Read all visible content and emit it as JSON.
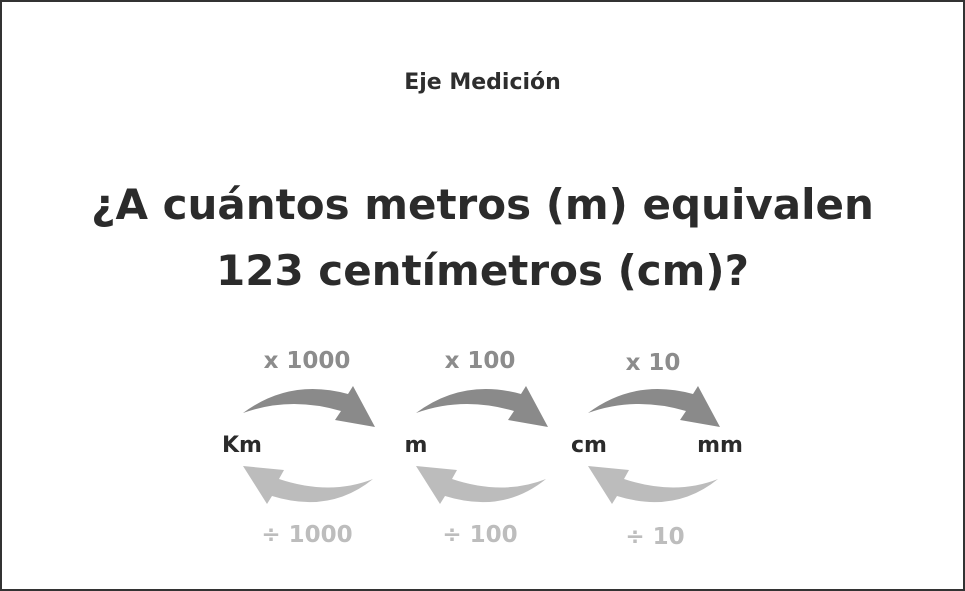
{
  "header": {
    "subject": "Eje Medición"
  },
  "question": {
    "line1": "¿A cuántos metros (m) equivalen",
    "line2": "123 centímetros (cm)?"
  },
  "conversion_diagram": {
    "units": [
      "Km",
      "m",
      "cm",
      "mm"
    ],
    "multiply_labels": [
      "x 1000",
      "x 100",
      "x 10"
    ],
    "divide_labels": [
      "÷ 1000",
      "÷ 100",
      "÷ 10"
    ],
    "colors": {
      "forward_arrow": "#8a8a8a",
      "backward_arrow": "#bcbcbc",
      "unit_text": "#2b2b2b"
    }
  }
}
